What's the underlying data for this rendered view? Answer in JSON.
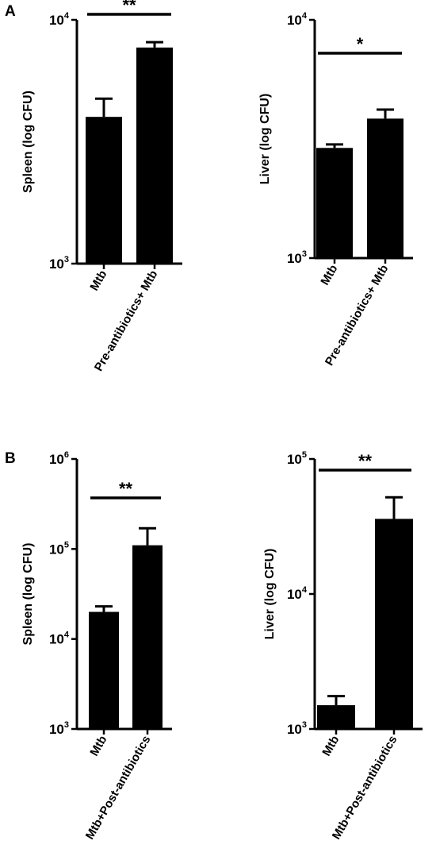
{
  "panel_labels": [
    "A",
    "B"
  ],
  "chart_data": [
    {
      "panel": "A",
      "type": "bar",
      "y_scale": "log",
      "ylabel": "Spleen (log CFU)",
      "ylim": [
        1000,
        10000
      ],
      "yticks": [
        {
          "base": "10",
          "exp": "3"
        },
        {
          "base": "10",
          "exp": "4"
        }
      ],
      "categories": [
        "Mtb",
        "Pre-antibiotics+ Mtb"
      ],
      "values": [
        4000,
        7700
      ],
      "error_upper": [
        4750,
        8100
      ],
      "significance": "**",
      "significance_span": [
        0,
        1
      ]
    },
    {
      "panel": "A",
      "type": "bar",
      "y_scale": "log",
      "ylabel": "Liver (log CFU)",
      "ylim": [
        1000,
        10000
      ],
      "yticks": [
        {
          "base": "10",
          "exp": "3"
        },
        {
          "base": "10",
          "exp": "4"
        }
      ],
      "categories": [
        "Mtb",
        "Pre-antibiotics+ Mtb"
      ],
      "values": [
        2900,
        3850
      ],
      "error_upper": [
        3000,
        4200
      ],
      "significance": "*",
      "significance_span": [
        0,
        1
      ]
    },
    {
      "panel": "B",
      "type": "bar",
      "y_scale": "log",
      "ylabel": "Spleen (log CFU)",
      "ylim": [
        1000,
        1000000
      ],
      "yticks": [
        {
          "base": "10",
          "exp": "3"
        },
        {
          "base": "10",
          "exp": "4"
        },
        {
          "base": "10",
          "exp": "5"
        },
        {
          "base": "10",
          "exp": "6"
        }
      ],
      "categories": [
        "Mtb",
        "Mtb+Post-antibiotics"
      ],
      "values": [
        20000,
        110000
      ],
      "error_upper": [
        23000,
        170000
      ],
      "significance": "**",
      "significance_span": [
        0,
        1
      ]
    },
    {
      "panel": "B",
      "type": "bar",
      "y_scale": "log",
      "ylabel": "Liver (log CFU)",
      "ylim": [
        1000,
        100000
      ],
      "yticks": [
        {
          "base": "10",
          "exp": "3"
        },
        {
          "base": "10",
          "exp": "4"
        },
        {
          "base": "10",
          "exp": "5"
        }
      ],
      "categories": [
        "Mtb",
        "Mtb+Post-antibiotics"
      ],
      "values": [
        1500,
        36000
      ],
      "error_upper": [
        1750,
        52000
      ],
      "significance": "**",
      "significance_span": [
        0,
        1
      ]
    }
  ]
}
